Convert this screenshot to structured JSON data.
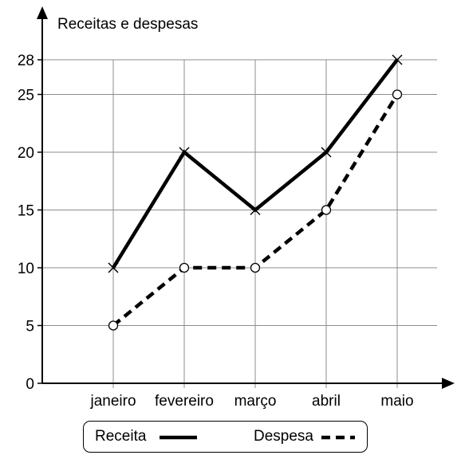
{
  "chart_data": {
    "type": "line",
    "ylabel": "Receitas e despesas",
    "xlabel": "",
    "categories": [
      "janeiro",
      "fevereiro",
      "março",
      "abril",
      "maio"
    ],
    "yticks": [
      0,
      5,
      10,
      15,
      20,
      25,
      28
    ],
    "ylim": [
      0,
      28
    ],
    "grid": true,
    "legend_position": "bottom",
    "series": [
      {
        "name": "Receita",
        "values": [
          10,
          20,
          15,
          20,
          28
        ],
        "line_style": "solid",
        "marker": "x",
        "color": "#000000"
      },
      {
        "name": "Despesa",
        "values": [
          5,
          10,
          10,
          15,
          25
        ],
        "line_style": "dashed",
        "marker": "circle",
        "color": "#000000"
      }
    ]
  }
}
